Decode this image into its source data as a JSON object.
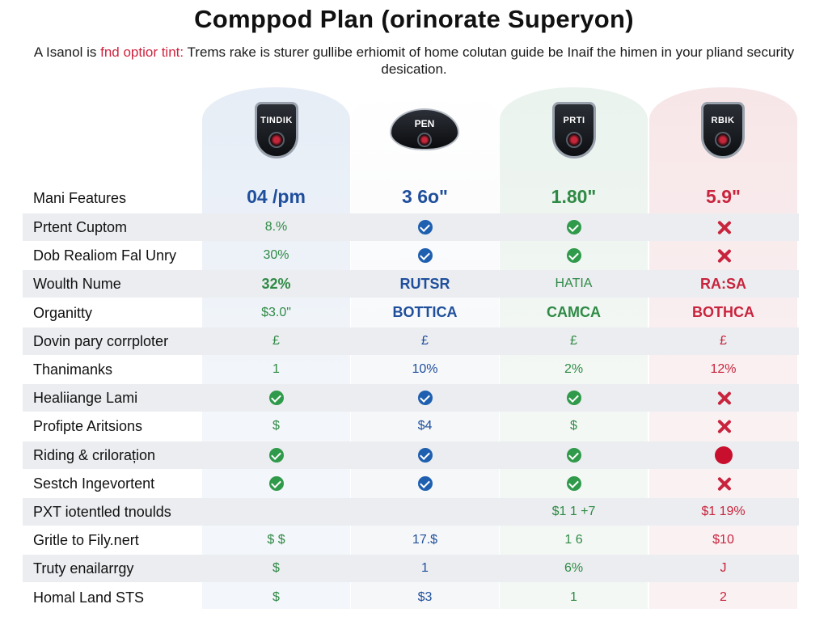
{
  "title": "Comppod Plan (orinorate Superyon)",
  "subtitle": {
    "before": "A Isanol is ",
    "highlight": "fnd optior tint:",
    "after": " Trems rake is sturer gullibe erhiomit of home colutan guide be Inaif the himen in your pliand security desication."
  },
  "plans": [
    {
      "badge_label": "TINDIK",
      "badge_icon": "shield-camera-icon",
      "price": "04 /pm",
      "price_color": "#1f4f9c"
    },
    {
      "badge_label": "PEN",
      "badge_icon": "dome-camera-icon",
      "price": "3 6o\"",
      "price_color": "#1f4f9c"
    },
    {
      "badge_label": "PRTI",
      "badge_icon": "shield-camera-icon",
      "price": "1.80\"",
      "price_color": "#2f8a45"
    },
    {
      "badge_label": "RBIK",
      "badge_icon": "shield-camera-icon",
      "price": "5.9\"",
      "price_color": "#c8243d"
    }
  ],
  "header_label": "Mani Features",
  "rows": [
    {
      "label": "Prtent Cuptom",
      "cells": [
        {
          "text": "8.%"
        },
        {
          "icon": "check-b"
        },
        {
          "icon": "check-g"
        },
        {
          "icon": "cross"
        }
      ]
    },
    {
      "label": "Dob Realiom Fal Unry",
      "cells": [
        {
          "text": "30%"
        },
        {
          "icon": "check-b"
        },
        {
          "icon": "check-g"
        },
        {
          "icon": "cross"
        }
      ]
    },
    {
      "label": "Woulth Nume",
      "cells": [
        {
          "text": "32%",
          "bold": true
        },
        {
          "text": "RUTSR",
          "bold": true
        },
        {
          "text": "HATIA"
        },
        {
          "text": "RA:SA",
          "bold": true
        }
      ]
    },
    {
      "label": "Organitty",
      "cells": [
        {
          "text": "$3.0\""
        },
        {
          "text": "BOTTICA",
          "bold": true
        },
        {
          "text": "CAMCA",
          "bold": true
        },
        {
          "text": "BOTHCA",
          "bold": true
        }
      ]
    },
    {
      "label": "Dovin pary corrploter",
      "cells": [
        {
          "text": "£"
        },
        {
          "text": "£"
        },
        {
          "text": "£"
        },
        {
          "text": "£"
        }
      ]
    },
    {
      "label": "Thanimanks",
      "cells": [
        {
          "text": "1"
        },
        {
          "text": "10%"
        },
        {
          "text": "2%"
        },
        {
          "text": "12%"
        }
      ]
    },
    {
      "label": "Healiiange Lami",
      "cells": [
        {
          "icon": "check-g"
        },
        {
          "icon": "check-b"
        },
        {
          "icon": "check-g"
        },
        {
          "icon": "cross"
        }
      ]
    },
    {
      "label": "Profipte Aritsions",
      "cells": [
        {
          "text": "$"
        },
        {
          "text": "$4"
        },
        {
          "text": "$"
        },
        {
          "icon": "cross"
        }
      ]
    },
    {
      "label": "Riding & crilorațion",
      "cells": [
        {
          "icon": "check-g"
        },
        {
          "icon": "check-b"
        },
        {
          "icon": "check-g"
        },
        {
          "icon": "dot"
        }
      ]
    },
    {
      "label": "Sestch Ingevortent",
      "cells": [
        {
          "icon": "check-g"
        },
        {
          "icon": "check-b"
        },
        {
          "icon": "check-g"
        },
        {
          "icon": "cross"
        }
      ]
    },
    {
      "label": "PXT iotentled tnoulds",
      "cells": [
        {
          "text": ""
        },
        {
          "text": ""
        },
        {
          "text": "$1 1 +7"
        },
        {
          "text": "$1 19%"
        }
      ]
    },
    {
      "label": "Gritle to Fily.nert",
      "cells": [
        {
          "text": "$ $"
        },
        {
          "text": "17.$"
        },
        {
          "text": "1 6"
        },
        {
          "text": "$10"
        }
      ]
    },
    {
      "label": "Truty enailarrgy",
      "cells": [
        {
          "text": "$"
        },
        {
          "text": "1"
        },
        {
          "text": "6%"
        },
        {
          "text": "J"
        }
      ]
    },
    {
      "label": "Homal Land STS",
      "cells": [
        {
          "text": "$"
        },
        {
          "text": "$3"
        },
        {
          "text": "1"
        },
        {
          "text": "2"
        }
      ]
    }
  ]
}
